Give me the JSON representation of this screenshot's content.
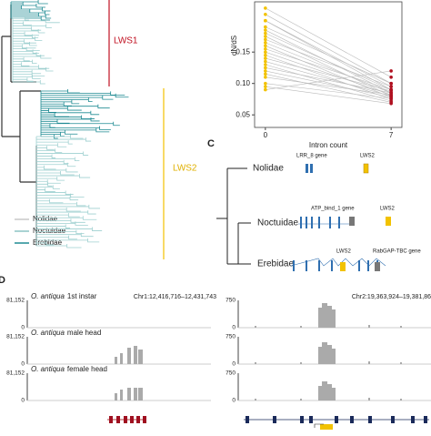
{
  "panel_labels": {
    "c": "C",
    "d": "D"
  },
  "tree": {
    "clades": [
      "LWS1",
      "LWS2"
    ],
    "legend": [
      "Nolidae",
      "Noctuidae",
      "Erebidae"
    ]
  },
  "chart_data": {
    "type": "slope",
    "y_label": "dN/dS",
    "x_label": "Intron count",
    "xlim": [
      -0.6,
      7.6
    ],
    "xticks": [
      0,
      7
    ],
    "ylim": [
      0.03,
      0.23
    ],
    "yticks": [
      {
        "value": 0.05,
        "label": "0.05"
      },
      {
        "value": 0.1,
        "label": "0.10"
      },
      {
        "value": 0.15,
        "label": "0.15"
      }
    ],
    "colors": [
      "#f2c200",
      "#b01020"
    ],
    "pairs": [
      [
        0.22,
        0.11
      ],
      [
        0.21,
        0.1
      ],
      [
        0.2,
        0.095
      ],
      [
        0.2,
        0.09
      ],
      [
        0.19,
        0.1
      ],
      [
        0.185,
        0.085
      ],
      [
        0.18,
        0.09
      ],
      [
        0.175,
        0.08
      ],
      [
        0.17,
        0.095
      ],
      [
        0.165,
        0.085
      ],
      [
        0.16,
        0.078
      ],
      [
        0.155,
        0.09
      ],
      [
        0.15,
        0.082
      ],
      [
        0.145,
        0.075
      ],
      [
        0.14,
        0.088
      ],
      [
        0.135,
        0.08
      ],
      [
        0.13,
        0.072
      ],
      [
        0.125,
        0.085
      ],
      [
        0.12,
        0.078
      ],
      [
        0.115,
        0.07
      ],
      [
        0.11,
        0.082
      ],
      [
        0.1,
        0.076
      ],
      [
        0.095,
        0.068
      ],
      [
        0.09,
        0.12
      ]
    ]
  },
  "gene_structure": {
    "species": [
      "Nolidae",
      "Noctuidae",
      "Erebidae"
    ],
    "genes": [
      "LRR_8 gene",
      "LWS2",
      "ATP_bind_1 gene",
      "LWS2",
      "LWS2",
      "RabGAP-TBC gene"
    ]
  },
  "coverage": {
    "species": "O. antiqua",
    "samples": [
      "1st instar",
      "male head",
      "female head"
    ],
    "regions": [
      "Chr1:12,416,716–12,431,743",
      "Chr2:19,363,924–19,381,86"
    ],
    "left_scale": [
      "81,152",
      "0"
    ],
    "right_scale": [
      "750",
      "0"
    ]
  }
}
